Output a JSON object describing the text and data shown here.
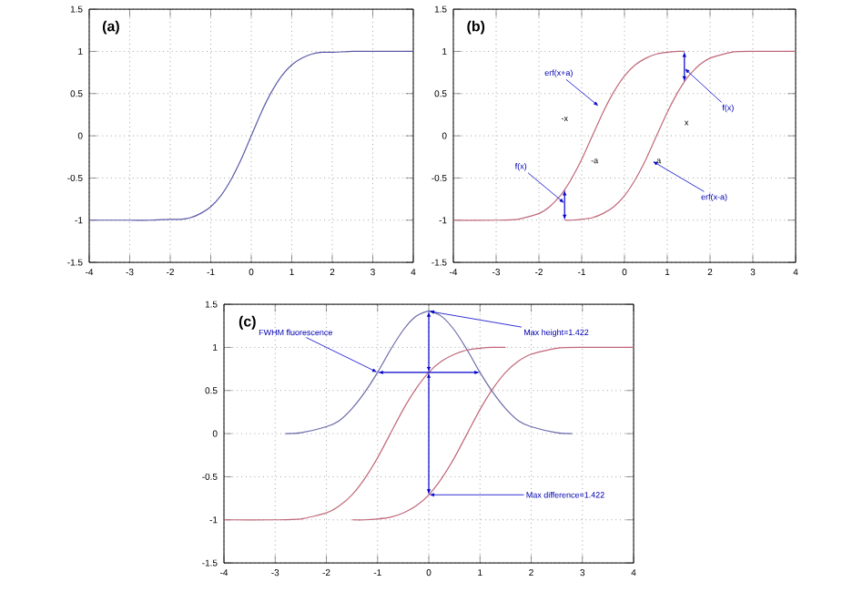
{
  "chart_data": [
    {
      "type": "line",
      "title": "(a)",
      "xlim": [
        -4,
        4
      ],
      "ylim": [
        -1.5,
        1.5
      ],
      "xticks": [
        -4,
        -3,
        -2,
        -1,
        0,
        1,
        2,
        3,
        4
      ],
      "yticks": [
        -1.5,
        -1,
        -0.5,
        0,
        0.5,
        1,
        1.5
      ],
      "grid": true,
      "series": [
        {
          "color": "#5a5aa8",
          "x": [
            -4,
            -3,
            -2.5,
            -2,
            -1.75,
            -1.5,
            -1.25,
            -1,
            -0.75,
            -0.5,
            -0.25,
            0,
            0.25,
            0.5,
            0.75,
            1,
            1.25,
            1.5,
            1.75,
            2,
            2.5,
            3,
            4
          ],
          "values": [
            -1,
            -1,
            -1,
            -0.99,
            -0.99,
            -0.97,
            -0.92,
            -0.84,
            -0.71,
            -0.52,
            -0.28,
            0,
            0.28,
            0.52,
            0.71,
            0.84,
            0.92,
            0.97,
            0.99,
            0.99,
            1,
            1,
            1
          ]
        }
      ]
    },
    {
      "type": "line",
      "title": "(b)",
      "xlim": [
        -4,
        4
      ],
      "ylim": [
        -1.5,
        1.5
      ],
      "xticks": [
        -4,
        -3,
        -2,
        -1,
        0,
        1,
        2,
        3,
        4
      ],
      "yticks": [
        -1.5,
        -1,
        -0.5,
        0,
        0.5,
        1,
        1.5
      ],
      "grid": true,
      "series": [
        {
          "color": "#c06878",
          "x": [
            -4,
            -3,
            -2.5,
            -2,
            -1.75,
            -1.5,
            -1.4,
            -1.25,
            -1,
            -0.75,
            -0.5,
            -0.25,
            0,
            0.25,
            0.5,
            0.75,
            1,
            1.25,
            1.4
          ],
          "values": [
            -1,
            -1,
            -0.99,
            -0.92,
            -0.84,
            -0.71,
            -0.64,
            -0.52,
            -0.28,
            0,
            0.28,
            0.52,
            0.71,
            0.84,
            0.92,
            0.97,
            0.99,
            1,
            1
          ]
        },
        {
          "color": "#c06878",
          "x": [
            -1.4,
            -1.25,
            -1,
            -0.75,
            -0.5,
            -0.25,
            0,
            0.25,
            0.5,
            0.75,
            1,
            1.25,
            1.4,
            1.5,
            1.75,
            2,
            2.5,
            3,
            4
          ],
          "values": [
            -1,
            -1,
            -0.99,
            -0.97,
            -0.92,
            -0.84,
            -0.71,
            -0.52,
            -0.28,
            0,
            0.28,
            0.52,
            0.64,
            0.71,
            0.84,
            0.92,
            0.99,
            1,
            1
          ]
        }
      ],
      "annotations": [
        {
          "text": "erf(x+a)",
          "x": -0.6,
          "y": 0.35
        },
        {
          "text": "f(x)",
          "x": -1.4,
          "y": -0.8
        },
        {
          "text": "erf(x-a)",
          "x": 0.65,
          "y": -0.3
        },
        {
          "text": "f(x)",
          "x": 1.4,
          "y": 0.8
        },
        "-x",
        "-a",
        "a",
        "x"
      ]
    },
    {
      "type": "line",
      "title": "(c)",
      "xlim": [
        -4,
        4
      ],
      "ylim": [
        -1.5,
        1.5
      ],
      "xticks": [
        -4,
        -3,
        -2,
        -1,
        0,
        1,
        2,
        3,
        4
      ],
      "yticks": [
        -1.5,
        -1,
        -0.5,
        0,
        0.5,
        1,
        1.5
      ],
      "grid": true,
      "series": [
        {
          "color": "#6a6aa8",
          "x": [
            -2.8,
            -2.5,
            -2,
            -1.75,
            -1.5,
            -1.25,
            -1,
            -0.75,
            -0.5,
            -0.25,
            0,
            0.25,
            0.5,
            0.75,
            1,
            1.25,
            1.5,
            1.75,
            2,
            2.5,
            2.8
          ],
          "values": [
            0,
            0.01,
            0.08,
            0.15,
            0.29,
            0.48,
            0.71,
            0.97,
            1.2,
            1.36,
            1.42,
            1.36,
            1.2,
            0.97,
            0.71,
            0.48,
            0.29,
            0.15,
            0.08,
            0.01,
            0
          ]
        },
        {
          "color": "#c06878",
          "x": [
            -4,
            -3,
            -2.5,
            -2,
            -1.75,
            -1.5,
            -1.25,
            -1,
            -0.75,
            -0.5,
            -0.25,
            0,
            0.25,
            0.5,
            0.75,
            1,
            1.25,
            1.5
          ],
          "values": [
            -1,
            -1,
            -0.99,
            -0.92,
            -0.84,
            -0.71,
            -0.52,
            -0.28,
            0,
            0.28,
            0.52,
            0.71,
            0.84,
            0.92,
            0.97,
            0.99,
            1,
            1
          ]
        },
        {
          "color": "#c06878",
          "x": [
            -1.5,
            -1.25,
            -1,
            -0.75,
            -0.5,
            -0.25,
            0,
            0.25,
            0.5,
            0.75,
            1,
            1.25,
            1.5,
            1.75,
            2,
            2.5,
            3,
            4
          ],
          "values": [
            -1,
            -1,
            -0.99,
            -0.97,
            -0.92,
            -0.84,
            -0.71,
            -0.52,
            -0.28,
            0,
            0.28,
            0.52,
            0.71,
            0.84,
            0.92,
            0.99,
            1,
            1
          ]
        }
      ],
      "annotations": [
        {
          "text": "FWHM fluorescence",
          "x": -1,
          "y": 0.71
        },
        {
          "text": "Max height=1.422",
          "x": 0,
          "y": 1.42
        },
        {
          "text": "Max difference=1.422",
          "x": 0,
          "y": -0.71
        }
      ]
    }
  ]
}
